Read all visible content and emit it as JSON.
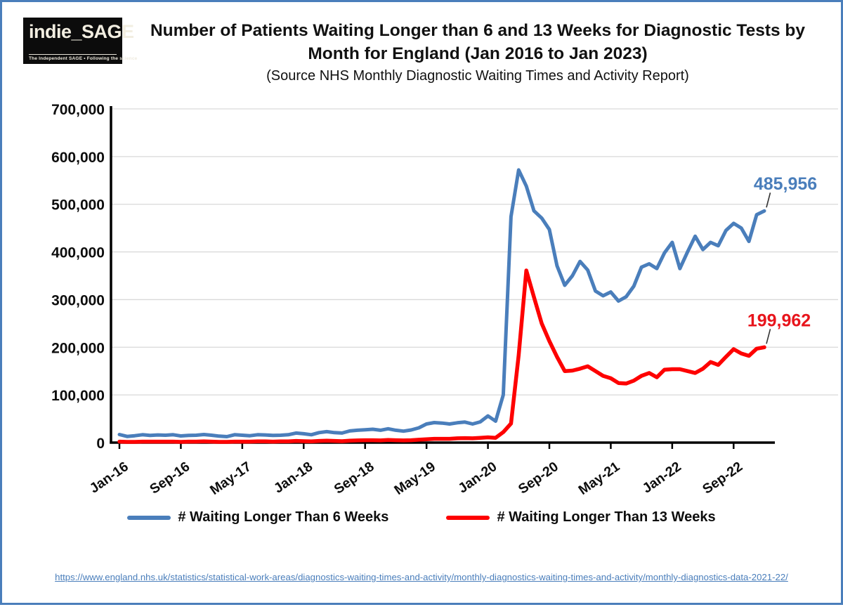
{
  "logo": {
    "name": "indie_SAGE",
    "tagline": "The Independent SAGE • Following the science"
  },
  "chart_data": {
    "type": "line",
    "title": "Number of Patients Waiting Longer than 6 and 13 Weeks for Diagnostic Tests by Month for England (Jan 2016 to Jan 2023)",
    "subtitle": "(Source NHS Monthly Diagnostic Waiting Times and Activity Report)",
    "grid": true,
    "legend_position": "bottom",
    "x_monthly_start": "Jan-16",
    "x_monthly_end": "Jan-23",
    "x_tick_labels": [
      "Jan-16",
      "Sep-16",
      "May-17",
      "Jan-18",
      "Sep-18",
      "May-19",
      "Jan-20",
      "Sep-20",
      "May-21",
      "Jan-22",
      "Sep-22"
    ],
    "y_axis": {
      "min": 0,
      "max": 700000,
      "step": 100000,
      "tick_labels": [
        "0",
        "100,000",
        "200,000",
        "300,000",
        "400,000",
        "500,000",
        "600,000",
        "700,000"
      ]
    },
    "colors": {
      "grid": "#d9d9d9",
      "axis": "#000000",
      "text": "#0d0d0d",
      "leader": "#333333"
    },
    "series": [
      {
        "id": "6-weeks",
        "name": "# Waiting Longer Than 6 Weeks",
        "color": "#4a7ebb",
        "label_color": "#4a7ebb",
        "end_label": "485,956",
        "end_value": 485956,
        "values": [
          17000,
          13000,
          14500,
          16500,
          15000,
          16000,
          15500,
          16500,
          14000,
          15000,
          15500,
          17000,
          15500,
          13500,
          12500,
          16500,
          15500,
          14500,
          16500,
          16000,
          15000,
          15500,
          16500,
          20000,
          18500,
          16500,
          21000,
          23000,
          21000,
          20000,
          24500,
          26000,
          27000,
          28000,
          26000,
          29000,
          26000,
          24000,
          26500,
          31000,
          39000,
          42000,
          41000,
          39000,
          41500,
          43000,
          39000,
          43500,
          56000,
          45000,
          100000,
          474000,
          572000,
          538000,
          486000,
          471000,
          447000,
          371000,
          330000,
          350000,
          380000,
          362000,
          318000,
          308000,
          316000,
          297000,
          306000,
          328000,
          368000,
          375000,
          365000,
          398000,
          420000,
          365000,
          400000,
          433000,
          405000,
          420000,
          413000,
          445000,
          460000,
          450000,
          422000,
          478000,
          485956
        ]
      },
      {
        "id": "13-weeks",
        "name": "# Waiting Longer Than 13 Weeks",
        "color": "#fe0000",
        "label_color": "#e8151c",
        "end_label": "199,962",
        "end_value": 199962,
        "values": [
          2000,
          1500,
          1500,
          2000,
          2000,
          2000,
          2000,
          2000,
          1500,
          2000,
          2000,
          2500,
          2000,
          1500,
          1500,
          2000,
          2000,
          2000,
          2500,
          2500,
          2000,
          2500,
          2500,
          3500,
          3000,
          2500,
          3500,
          4000,
          3500,
          3000,
          4000,
          4500,
          5000,
          5000,
          4500,
          5500,
          5000,
          4500,
          5000,
          6000,
          7000,
          8000,
          8000,
          8000,
          9000,
          9500,
          9000,
          10000,
          11000,
          10000,
          22000,
          40000,
          183000,
          361000,
          305000,
          250000,
          213000,
          180000,
          150000,
          151000,
          155000,
          160000,
          150000,
          140000,
          135000,
          125000,
          124000,
          130000,
          140000,
          146000,
          137000,
          153000,
          154000,
          154000,
          150000,
          146000,
          155000,
          169000,
          163000,
          180000,
          196000,
          187000,
          182000,
          197000,
          199962
        ]
      }
    ]
  },
  "footer": {
    "url": "https://www.england.nhs.uk/statistics/statistical-work-areas/diagnostics-waiting-times-and-activity/monthly-diagnostics-waiting-times-and-activity/monthly-diagnostics-data-2021-22/"
  }
}
